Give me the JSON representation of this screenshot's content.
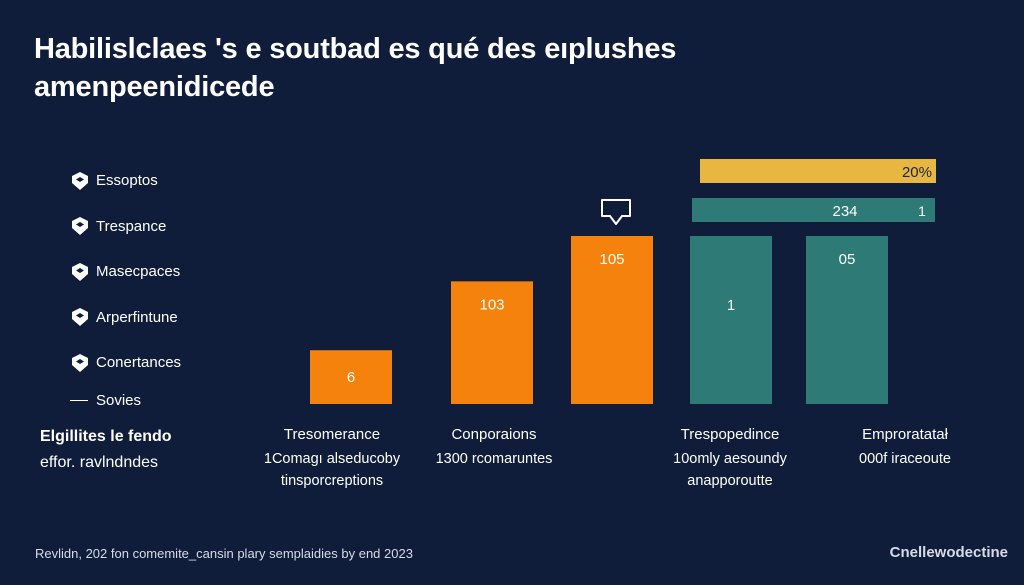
{
  "title_line1": "Habilislclaes 's e soutbad es qué des eıplushes",
  "title_line2": "amenpeenidicede",
  "legend": [
    {
      "label": "Essoptos",
      "icon": "shield-icon"
    },
    {
      "label": "Trespance",
      "icon": "shield-icon"
    },
    {
      "label": "Masecpaces",
      "icon": "shield-icon"
    },
    {
      "label": "Arperfintune",
      "icon": "shield-icon"
    },
    {
      "label": "Conertances",
      "icon": "shield-icon"
    },
    {
      "label": "Sovies",
      "icon": "dash"
    }
  ],
  "side_note": {
    "line1": "Elgillites le fendo",
    "line2": "effor. ravlndndes"
  },
  "category_labels": [
    {
      "main": "Tresomerance",
      "sub1": "1Comagı alseducoby",
      "sub2": "tinsporcreptions"
    },
    {
      "main": "Conporaions",
      "sub1": "1300 rcomaruntes",
      "sub2": ""
    },
    {
      "main": "Trespopedince",
      "sub1": "10omly aesoundy",
      "sub2": "anapporoutte"
    },
    {
      "main": "Emproratatał",
      "sub1": "000f iraceoute",
      "sub2": ""
    }
  ],
  "footer_note": "Revlidn, 202 fon comemite_cansin plary semplaidies by end 2023",
  "brand": "Cnellewodectine",
  "colors": {
    "background": "#0f1d3b",
    "orange": "#f5820d",
    "teal": "#2e7a76",
    "gold": "#e7b740",
    "text": "#ffffff"
  },
  "chart_data": {
    "type": "bar",
    "orientation": "vertical",
    "bars": [
      {
        "value": 6,
        "label": "6",
        "color": "#f5820d"
      },
      {
        "value": 103,
        "label": "103",
        "color": "#f5820d"
      },
      {
        "value": 105,
        "label": "105",
        "color": "#f5820d"
      },
      {
        "value": 1,
        "label": "1",
        "color": "#2e7a76"
      },
      {
        "value": 5,
        "label": "05",
        "color": "#2e7a76"
      }
    ],
    "bar_heights_relative": [
      0.32,
      0.73,
      1.0,
      1.0,
      1.0
    ],
    "annotation_icon": "speech-bubble-icon",
    "horizontal_bars": [
      {
        "value": 20,
        "label": "20%",
        "color": "#e7b740"
      },
      {
        "value": 234,
        "label": "234",
        "extra_label": "1",
        "color": "#2e7a76"
      }
    ],
    "grid": false
  }
}
